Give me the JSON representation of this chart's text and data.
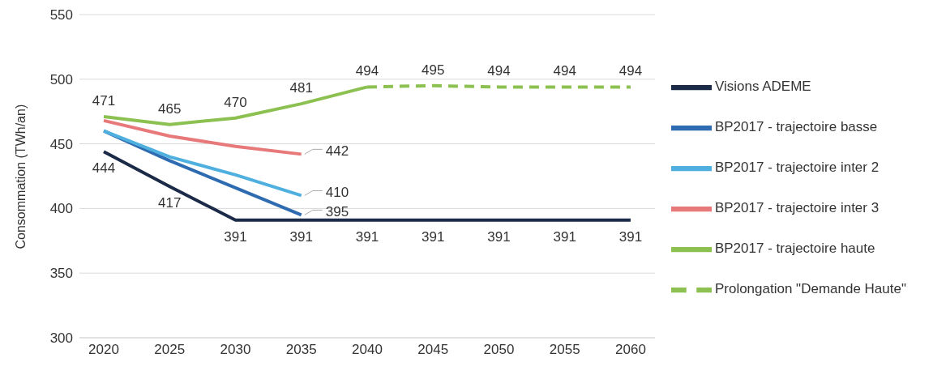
{
  "chart_data": {
    "type": "line",
    "ylabel": "Consommation (TWh/an)",
    "categories": [
      "2020",
      "2025",
      "2030",
      "2035",
      "2040",
      "2045",
      "2050",
      "2055",
      "2060"
    ],
    "ylim": [
      300,
      550
    ],
    "yticks": [
      300,
      350,
      400,
      450,
      500,
      550
    ],
    "grid": "y",
    "legend": "right",
    "marker": "none",
    "series": [
      {
        "name": "Visions ADEME",
        "color": "#1b2a47",
        "values": [
          444,
          417,
          391,
          391,
          391,
          391,
          391,
          391,
          391
        ],
        "value_labels": [
          "444",
          "417",
          "391",
          "391",
          "391",
          "391",
          "391",
          "391",
          "391"
        ]
      },
      {
        "name": "BP2017 - trajectoire basse",
        "color": "#2e6bb0",
        "values": [
          460,
          437,
          416,
          395,
          null,
          null,
          null,
          null,
          null
        ],
        "value_labels": [
          null,
          null,
          null,
          "395",
          null,
          null,
          null,
          null,
          null
        ]
      },
      {
        "name": "BP2017 - trajectoire inter 2",
        "color": "#4fb0e0",
        "values": [
          460,
          440,
          426,
          410,
          null,
          null,
          null,
          null,
          null
        ],
        "value_labels": [
          null,
          null,
          null,
          "410",
          null,
          null,
          null,
          null,
          null
        ]
      },
      {
        "name": "BP2017 - trajectoire inter 3",
        "color": "#e7797a",
        "values": [
          468,
          456,
          448,
          442,
          null,
          null,
          null,
          null,
          null
        ],
        "value_labels": [
          null,
          null,
          null,
          "442",
          null,
          null,
          null,
          null,
          null
        ]
      },
      {
        "name": "BP2017 - trajectoire haute",
        "color": "#8cc152",
        "values": [
          471,
          465,
          470,
          481,
          494,
          null,
          null,
          null,
          null
        ],
        "value_labels": [
          "471",
          "465",
          "470",
          "481",
          "494",
          null,
          null,
          null,
          null
        ]
      },
      {
        "name": "Prolongation \"Demande Haute\"",
        "color": "#8cc152",
        "line_style": "dashed",
        "values": [
          null,
          null,
          null,
          null,
          494,
          495,
          494,
          494,
          494
        ],
        "value_labels": [
          null,
          null,
          null,
          null,
          null,
          "495",
          "494",
          "494",
          "494"
        ]
      }
    ]
  }
}
